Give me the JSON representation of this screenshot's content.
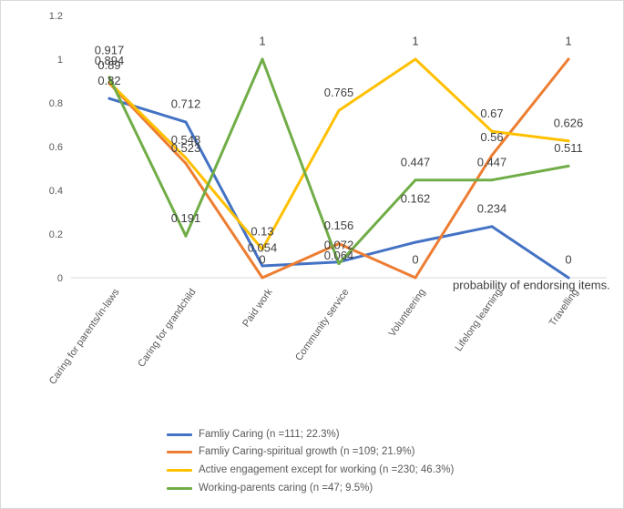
{
  "chart_data": {
    "type": "line",
    "title": "",
    "xlabel": "",
    "ylabel": "",
    "ylim": [
      0,
      1.2
    ],
    "yticks": [
      0,
      0.2,
      0.4,
      0.6,
      0.8,
      1,
      1.2
    ],
    "grid": false,
    "data_labels": true,
    "legend": "bottom",
    "categories": [
      "Caring for parents/in-laws",
      "Caring for grandchild",
      "Paid work",
      "Community service",
      "Volunteering",
      "Lifelong learning",
      "Travelling"
    ],
    "series": [
      {
        "name": "Famliy Caring (n =111; 22.3%)",
        "color": "#4472C4",
        "values": [
          0.82,
          0.712,
          0.054,
          0.072,
          0.162,
          0.234,
          0
        ]
      },
      {
        "name": "Famliy Caring-spiritual growth (n =109; 21.9%)",
        "color": "#ED7D31",
        "values": [
          0.89,
          0.523,
          0,
          0.156,
          0,
          0.56,
          1
        ]
      },
      {
        "name": "Active engagement except for working (n =230; 46.3%)",
        "color": "#FFC000",
        "values": [
          0.894,
          0.548,
          0.13,
          0.765,
          1,
          0.67,
          0.626
        ]
      },
      {
        "name": "Working-parents caring (n =47; 9.5%)",
        "color": "#70AD47",
        "values": [
          0.917,
          0.191,
          1,
          0.064,
          0.447,
          0.447,
          0.511
        ]
      }
    ],
    "annotation": "probability of endorsing items."
  }
}
